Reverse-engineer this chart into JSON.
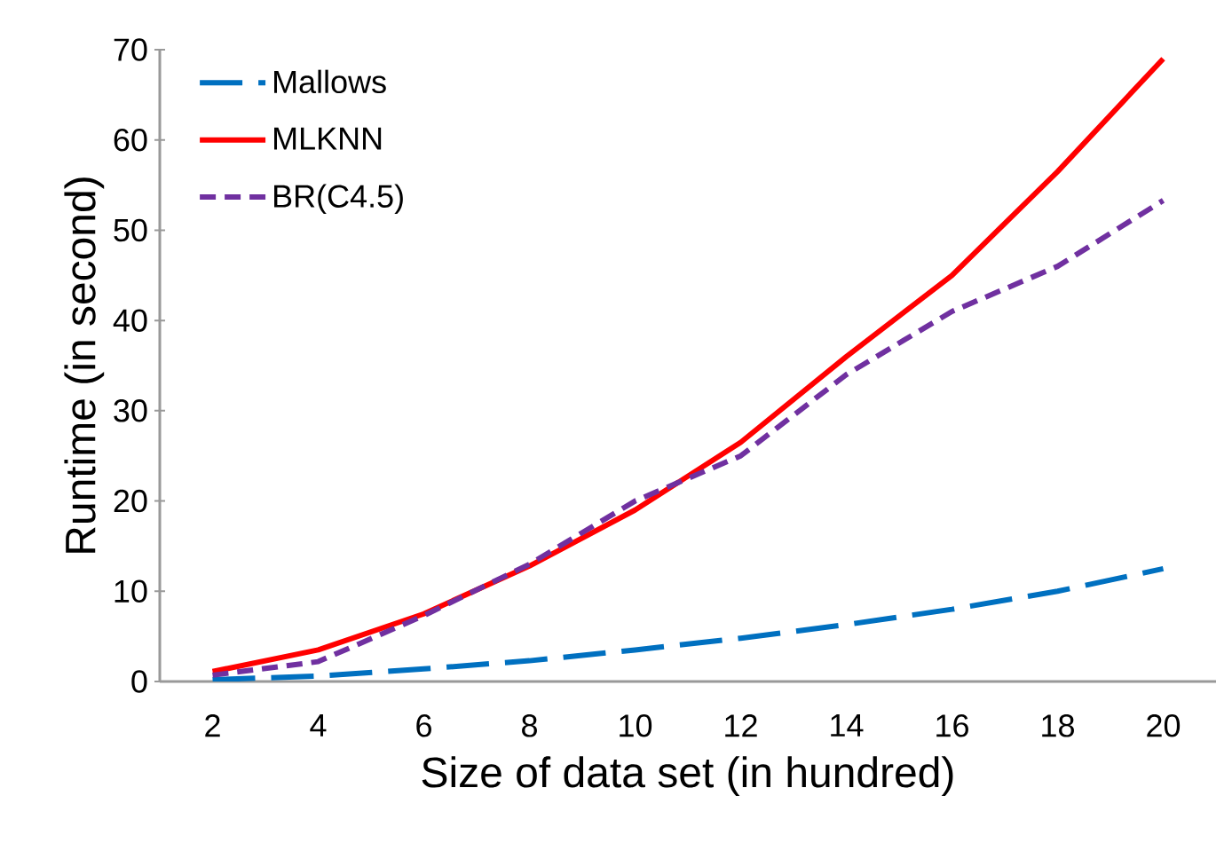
{
  "chart_data": {
    "type": "line",
    "xlabel": "Size of data set (in hundred)",
    "ylabel": "Runtime (in second)",
    "categories": [
      "2",
      "4",
      "6",
      "8",
      "10",
      "12",
      "14",
      "16",
      "18",
      "20"
    ],
    "series": [
      {
        "name": "Mallows",
        "color": "#0070c0",
        "line_style": "dashed",
        "values": [
          0.2,
          0.6,
          1.4,
          2.3,
          3.5,
          4.8,
          6.3,
          8,
          10,
          12.5
        ]
      },
      {
        "name": "MLKNN",
        "color": "#ff0000",
        "line_style": "solid",
        "values": [
          1.1,
          3.5,
          7.5,
          12.8,
          19,
          26.5,
          36,
          45,
          56.5,
          69
        ]
      },
      {
        "name": "BR(C4.5)",
        "color": "#7030a0",
        "line_style": "dotted",
        "values": [
          0.7,
          2.2,
          7.3,
          13,
          20,
          25,
          34,
          41,
          46,
          53.3
        ]
      }
    ],
    "ylim": [
      0,
      70
    ],
    "yticks": [
      0,
      10,
      20,
      30,
      40,
      50,
      60,
      70
    ],
    "grid": false,
    "legend": "top left",
    "marker": "none"
  }
}
